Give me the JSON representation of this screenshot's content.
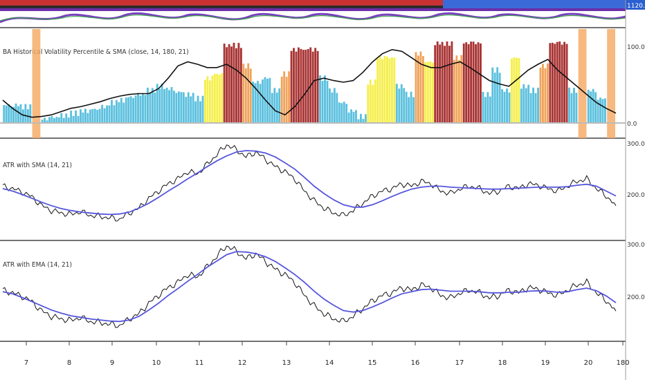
{
  "colors": {
    "black_line": "#111111",
    "blue_line": "#5555dd",
    "bar_blue": "#5bc0de",
    "bar_yellow": "#f5ef4a",
    "bar_orange": "#f0a35a",
    "bar_red": "#a83232",
    "highlight_orange": "#f5a860",
    "grid": "#e6e6e6",
    "divider": "#444444",
    "top_axis_badge": "#2a5fd0"
  },
  "top_pane": {
    "axis_badge": "1120.0"
  },
  "x_axis": {
    "ticks": [
      "7",
      "8",
      "9",
      "10",
      "11",
      "12",
      "13",
      "14",
      "15",
      "16",
      "17",
      "18",
      "19",
      "20",
      "180"
    ]
  },
  "chart_data": [
    {
      "type": "bar",
      "title": "BA  Historical Volatility Percentile & SMA (close, 14, 180, 21)",
      "y_axis_ticks": [
        "100.0",
        "0.0"
      ],
      "ylim": [
        0,
        100
      ],
      "bars": [
        {
          "x": 0,
          "value": 22,
          "color": "blue"
        },
        {
          "x": 1,
          "value": 22,
          "color": "blue"
        },
        {
          "x": 2,
          "value": 20,
          "color": "blue"
        },
        {
          "x": 3,
          "value": 0,
          "color": "orange"
        },
        {
          "x": 4,
          "value": 5,
          "color": "blue"
        },
        {
          "x": 5,
          "value": 7,
          "color": "blue"
        },
        {
          "x": 6,
          "value": 9,
          "color": "blue"
        },
        {
          "x": 7,
          "value": 12,
          "color": "blue"
        },
        {
          "x": 8,
          "value": 15,
          "color": "blue"
        },
        {
          "x": 9,
          "value": 17,
          "color": "blue"
        },
        {
          "x": 10,
          "value": 20,
          "color": "blue"
        },
        {
          "x": 11,
          "value": 25,
          "color": "blue"
        },
        {
          "x": 12,
          "value": 28,
          "color": "blue"
        },
        {
          "x": 13,
          "value": 32,
          "color": "blue"
        },
        {
          "x": 14,
          "value": 35,
          "color": "blue"
        },
        {
          "x": 15,
          "value": 40,
          "color": "blue"
        },
        {
          "x": 16,
          "value": 45,
          "color": "blue"
        },
        {
          "x": 17,
          "value": 42,
          "color": "blue"
        },
        {
          "x": 18,
          "value": 38,
          "color": "blue"
        },
        {
          "x": 19,
          "value": 35,
          "color": "blue"
        },
        {
          "x": 20,
          "value": 30,
          "color": "blue"
        },
        {
          "x": 21,
          "value": 55,
          "color": "yellow"
        },
        {
          "x": 22,
          "value": 60,
          "color": "yellow"
        },
        {
          "x": 23,
          "value": 95,
          "color": "red"
        },
        {
          "x": 24,
          "value": 95,
          "color": "red"
        },
        {
          "x": 25,
          "value": 70,
          "color": "orange"
        },
        {
          "x": 26,
          "value": 50,
          "color": "blue"
        },
        {
          "x": 27,
          "value": 55,
          "color": "blue"
        },
        {
          "x": 28,
          "value": 40,
          "color": "blue"
        },
        {
          "x": 29,
          "value": 60,
          "color": "orange"
        },
        {
          "x": 30,
          "value": 90,
          "color": "red"
        },
        {
          "x": 31,
          "value": 90,
          "color": "red"
        },
        {
          "x": 32,
          "value": 90,
          "color": "red"
        },
        {
          "x": 33,
          "value": 55,
          "color": "blue"
        },
        {
          "x": 34,
          "value": 40,
          "color": "blue"
        },
        {
          "x": 35,
          "value": 25,
          "color": "blue"
        },
        {
          "x": 36,
          "value": 15,
          "color": "blue"
        },
        {
          "x": 37,
          "value": 8,
          "color": "blue"
        },
        {
          "x": 38,
          "value": 50,
          "color": "yellow"
        },
        {
          "x": 39,
          "value": 80,
          "color": "yellow"
        },
        {
          "x": 40,
          "value": 80,
          "color": "yellow"
        },
        {
          "x": 41,
          "value": 45,
          "color": "blue"
        },
        {
          "x": 42,
          "value": 35,
          "color": "blue"
        },
        {
          "x": 43,
          "value": 85,
          "color": "orange"
        },
        {
          "x": 44,
          "value": 75,
          "color": "yellow"
        },
        {
          "x": 45,
          "value": 98,
          "color": "red"
        },
        {
          "x": 46,
          "value": 98,
          "color": "red"
        },
        {
          "x": 47,
          "value": 80,
          "color": "orange"
        },
        {
          "x": 48,
          "value": 98,
          "color": "red"
        },
        {
          "x": 49,
          "value": 98,
          "color": "red"
        },
        {
          "x": 50,
          "value": 35,
          "color": "blue"
        },
        {
          "x": 51,
          "value": 65,
          "color": "blue"
        },
        {
          "x": 52,
          "value": 40,
          "color": "blue"
        },
        {
          "x": 53,
          "value": 80,
          "color": "yellow"
        },
        {
          "x": 54,
          "value": 45,
          "color": "blue"
        },
        {
          "x": 55,
          "value": 40,
          "color": "blue"
        },
        {
          "x": 56,
          "value": 70,
          "color": "orange"
        },
        {
          "x": 57,
          "value": 98,
          "color": "red"
        },
        {
          "x": 58,
          "value": 98,
          "color": "red"
        },
        {
          "x": 59,
          "value": 40,
          "color": "blue"
        },
        {
          "x": 60,
          "value": 0,
          "color": "orange"
        },
        {
          "x": 61,
          "value": 40,
          "color": "blue"
        },
        {
          "x": 62,
          "value": 30,
          "color": "blue"
        },
        {
          "x": 63,
          "value": 0,
          "color": "orange"
        }
      ],
      "sma_line": [
        28,
        18,
        10,
        7,
        8,
        10,
        14,
        18,
        20,
        23,
        26,
        30,
        33,
        35,
        36,
        36,
        42,
        55,
        70,
        75,
        72,
        68,
        68,
        72,
        65,
        55,
        42,
        28,
        15,
        10,
        20,
        35,
        52,
        55,
        52,
        50,
        52,
        62,
        75,
        85,
        90,
        88,
        80,
        72,
        68,
        68,
        72,
        75,
        68,
        60,
        52,
        48,
        45,
        55,
        65,
        72,
        78,
        65,
        55,
        45,
        35,
        25,
        18,
        12
      ]
    },
    {
      "type": "line",
      "title": "ATR with SMA (14, 21)",
      "y_axis_ticks": [
        "300.0",
        "200.0"
      ],
      "ylim": [
        110,
        300
      ],
      "series": [
        {
          "values": [
            210,
            205,
            198,
            188,
            170,
            160,
            155,
            152,
            158,
            150,
            148,
            145,
            142,
            155,
            165,
            185,
            200,
            215,
            225,
            240,
            235,
            255,
            275,
            295,
            285,
            270,
            280,
            265,
            250,
            240,
            225,
            200,
            180,
            165,
            155,
            150,
            160,
            175,
            190,
            200,
            205,
            215,
            210,
            220,
            215,
            200,
            195,
            205,
            210,
            205,
            195,
            200,
            210,
            205,
            215,
            212,
            205,
            200,
            210,
            220,
            225,
            205,
            190,
            170
          ]
        },
        {
          "values": [
            205,
            200,
            193,
            185,
            177,
            170,
            164,
            160,
            157,
            155,
            153,
            152,
            153,
            157,
            165,
            175,
            187,
            200,
            212,
            225,
            237,
            250,
            262,
            272,
            280,
            283,
            282,
            278,
            270,
            258,
            245,
            228,
            210,
            195,
            182,
            172,
            167,
            167,
            172,
            180,
            189,
            197,
            204,
            208,
            210,
            210,
            208,
            207,
            206,
            205,
            204,
            204,
            205,
            206,
            207,
            208,
            208,
            208,
            209,
            212,
            214,
            210,
            200,
            190
          ]
        }
      ]
    },
    {
      "type": "line",
      "title": "ATR with EMA (14, 21)",
      "y_axis_ticks": [
        "300.0",
        "200.0"
      ],
      "ylim": [
        120,
        300
      ],
      "series": [
        {
          "values": [
            210,
            205,
            198,
            188,
            170,
            160,
            155,
            152,
            158,
            150,
            148,
            145,
            142,
            155,
            165,
            185,
            200,
            215,
            225,
            240,
            235,
            255,
            275,
            295,
            285,
            270,
            280,
            265,
            250,
            240,
            225,
            200,
            180,
            165,
            155,
            150,
            160,
            175,
            190,
            200,
            205,
            215,
            210,
            220,
            215,
            200,
            195,
            205,
            210,
            205,
            195,
            200,
            210,
            205,
            215,
            212,
            205,
            200,
            210,
            220,
            225,
            205,
            190,
            170
          ]
        },
        {
          "values": [
            207,
            203,
            196,
            188,
            180,
            172,
            166,
            161,
            158,
            155,
            153,
            151,
            150,
            153,
            160,
            172,
            185,
            200,
            213,
            227,
            240,
            254,
            266,
            278,
            284,
            283,
            280,
            274,
            265,
            253,
            240,
            225,
            208,
            193,
            181,
            171,
            168,
            171,
            178,
            186,
            195,
            203,
            207,
            211,
            212,
            210,
            208,
            208,
            208,
            207,
            205,
            205,
            206,
            206,
            208,
            209,
            208,
            206,
            207,
            211,
            214,
            209,
            199,
            186
          ]
        }
      ]
    }
  ]
}
